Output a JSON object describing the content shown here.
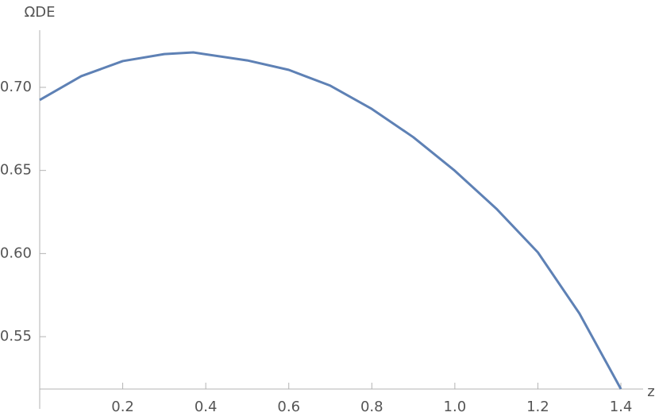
{
  "chart_data": {
    "type": "line",
    "x_label": "z",
    "y_label": "ΩDE",
    "x": [
      0,
      0.1,
      0.2,
      0.3,
      0.37,
      0.5,
      0.6,
      0.7,
      0.8,
      0.9,
      1.0,
      1.1,
      1.2,
      1.3,
      1.4
    ],
    "series": [
      {
        "color": "#5e81b5",
        "values": [
          0.6924,
          0.7067,
          0.7158,
          0.72,
          0.721,
          0.7162,
          0.7105,
          0.701,
          0.687,
          0.67,
          0.6498,
          0.627,
          0.6007,
          0.564,
          0.5185
        ]
      }
    ],
    "xlim": [
      0,
      1.4344
    ],
    "ylim": [
      0.5185,
      0.732
    ],
    "xticks": [
      0.2,
      0.4,
      0.6,
      0.8,
      {
        "value": 1.0,
        "label": "1.0"
      },
      1.2,
      1.4
    ],
    "yticks": [
      0.55,
      {
        "value": 0.6,
        "label": "0.60"
      },
      0.65,
      {
        "value": 0.7,
        "label": "0.70"
      }
    ]
  }
}
